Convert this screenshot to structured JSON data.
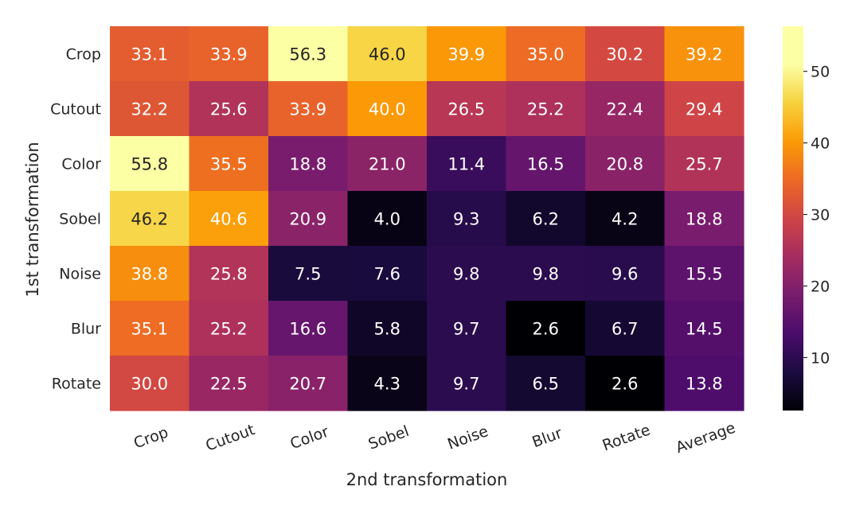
{
  "chart_data": {
    "type": "heatmap",
    "xlabel": "2nd transformation",
    "ylabel": "1st transformation",
    "x_categories": [
      "Crop",
      "Cutout",
      "Color",
      "Sobel",
      "Noise",
      "Blur",
      "Rotate",
      "Average"
    ],
    "y_categories": [
      "Crop",
      "Cutout",
      "Color",
      "Sobel",
      "Noise",
      "Blur",
      "Rotate"
    ],
    "values": [
      [
        33.1,
        33.9,
        56.3,
        46.0,
        39.9,
        35.0,
        30.2,
        39.2
      ],
      [
        32.2,
        25.6,
        33.9,
        40.0,
        26.5,
        25.2,
        22.4,
        29.4
      ],
      [
        55.8,
        35.5,
        18.8,
        21.0,
        11.4,
        16.5,
        20.8,
        25.7
      ],
      [
        46.2,
        40.6,
        20.9,
        4.0,
        9.3,
        6.2,
        4.2,
        18.8
      ],
      [
        38.8,
        25.8,
        7.5,
        7.6,
        9.8,
        9.8,
        9.6,
        15.5
      ],
      [
        35.1,
        25.2,
        16.6,
        5.8,
        9.7,
        2.6,
        6.7,
        14.5
      ],
      [
        30.0,
        22.5,
        20.7,
        4.3,
        9.7,
        6.5,
        2.6,
        13.8
      ]
    ],
    "value_labels": [
      [
        "33.1",
        "33.9",
        "56.3",
        "46.0",
        "39.9",
        "35.0",
        "30.2",
        "39.2"
      ],
      [
        "32.2",
        "25.6",
        "33.9",
        "40.0",
        "26.5",
        "25.2",
        "22.4",
        "29.4"
      ],
      [
        "55.8",
        "35.5",
        "18.8",
        "21.0",
        "11.4",
        "16.5",
        "20.8",
        "25.7"
      ],
      [
        "46.2",
        "40.6",
        "20.9",
        "4.0",
        "9.3",
        "6.2",
        "4.2",
        "18.8"
      ],
      [
        "38.8",
        "25.8",
        "7.5",
        "7.6",
        "9.8",
        "9.8",
        "9.6",
        "15.5"
      ],
      [
        "35.1",
        "25.2",
        "16.6",
        "5.8",
        "9.7",
        "2.6",
        "6.7",
        "14.5"
      ],
      [
        "30.0",
        "22.5",
        "20.7",
        "4.3",
        "9.7",
        "6.5",
        "2.6",
        "13.8"
      ]
    ],
    "colormap": "inferno",
    "colorbar": {
      "range": [
        2.6,
        56.3
      ],
      "ticks": [
        10,
        20,
        30,
        40,
        50
      ],
      "tick_labels": [
        "10",
        "20",
        "30",
        "40",
        "50"
      ],
      "placement": "right"
    },
    "grid": false
  }
}
